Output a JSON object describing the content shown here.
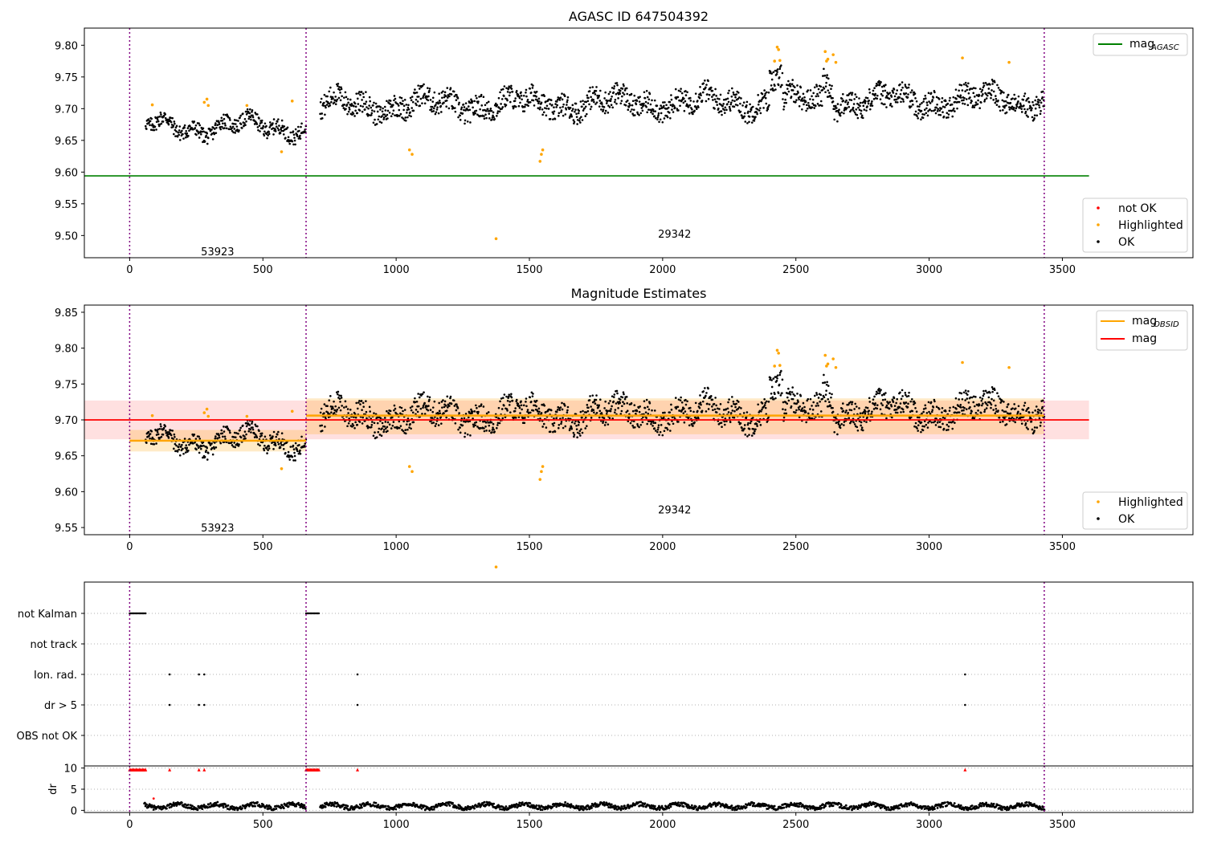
{
  "chart_data": [
    {
      "type": "scatter",
      "title": "AGASC ID 647504392",
      "xlim": [
        -170,
        3990
      ],
      "ylim": [
        9.465,
        9.827
      ],
      "xticks": [
        "0",
        "500",
        "1000",
        "1500",
        "2000",
        "2500",
        "3000",
        "3500"
      ],
      "yticks": [
        "9.50",
        "9.55",
        "9.60",
        "9.65",
        "9.70",
        "9.75",
        "9.80"
      ],
      "obs_boundaries": [
        0,
        662,
        3432
      ],
      "obs_labels": [
        {
          "text": "53923",
          "x": 330,
          "y": 9.475
        },
        {
          "text": "29342",
          "x": 2045,
          "y": 9.503
        }
      ],
      "reference_line": {
        "name": "mag_AGASC",
        "y": 9.594,
        "x": [
          -170,
          3600
        ],
        "color": "#008000"
      },
      "legend_top": {
        "label": "mag",
        "sub": "AGASC"
      },
      "legend_bottom": [
        "not OK",
        "Highlighted",
        "OK"
      ],
      "series": [
        {
          "name": "OK",
          "color": "#000000",
          "segments": [
            {
              "x0": 60,
              "x1": 662,
              "base": 9.672,
              "noise": 0.012
            },
            {
              "x0": 715,
              "x1": 3432,
              "base": 9.705,
              "noise": 0.018
            }
          ]
        },
        {
          "name": "Highlighted",
          "color": "#ffa500",
          "points": [
            [
              85,
              9.706
            ],
            [
              280,
              9.71
            ],
            [
              290,
              9.715
            ],
            [
              295,
              9.705
            ],
            [
              440,
              9.705
            ],
            [
              570,
              9.632
            ],
            [
              610,
              9.712
            ],
            [
              1050,
              9.635
            ],
            [
              1060,
              9.628
            ],
            [
              1375,
              9.495
            ],
            [
              1540,
              9.617
            ],
            [
              1545,
              9.628
            ],
            [
              1550,
              9.635
            ],
            [
              2420,
              9.775
            ],
            [
              2430,
              9.797
            ],
            [
              2435,
              9.793
            ],
            [
              2440,
              9.776
            ],
            [
              2610,
              9.79
            ],
            [
              2615,
              9.775
            ],
            [
              2620,
              9.778
            ],
            [
              2640,
              9.785
            ],
            [
              2650,
              9.773
            ],
            [
              3125,
              9.78
            ],
            [
              3300,
              9.773
            ]
          ]
        }
      ]
    },
    {
      "type": "scatter",
      "title": "Magnitude Estimates",
      "xlim": [
        -170,
        3990
      ],
      "ylim": [
        9.54,
        9.86
      ],
      "xticks": [
        "0",
        "500",
        "1000",
        "1500",
        "2000",
        "2500",
        "3000",
        "3500"
      ],
      "yticks": [
        "9.55",
        "9.60",
        "9.65",
        "9.70",
        "9.75",
        "9.80",
        "9.85"
      ],
      "obs_boundaries": [
        0,
        662,
        3432
      ],
      "obs_labels": [
        {
          "text": "53923",
          "x": 330,
          "y": 9.55
        },
        {
          "text": "29342",
          "x": 2045,
          "y": 9.575
        }
      ],
      "mag": {
        "y": 9.7,
        "band": [
          9.673,
          9.727
        ],
        "x": [
          -170,
          3600
        ],
        "color": "#ff0000"
      },
      "mag_obsid": [
        {
          "x": [
            0,
            662
          ],
          "y": 9.671,
          "band": [
            9.656,
            9.686
          ]
        },
        {
          "x": [
            662,
            3432
          ],
          "y": 9.706,
          "band": [
            9.68,
            9.73
          ]
        }
      ],
      "legend_top": [
        {
          "label": "mag",
          "sub": "OBSID"
        },
        {
          "label": "mag",
          "sub": ""
        }
      ],
      "legend_bottom": [
        "Highlighted",
        "OK"
      ]
    },
    {
      "type": "scatter",
      "xlim": [
        -170,
        3990
      ],
      "xticks": [
        "0",
        "500",
        "1000",
        "1500",
        "2000",
        "2500",
        "3000",
        "3500"
      ],
      "category_labels": [
        "not Kalman",
        "not track",
        "Ion. rad.",
        "dr > 5",
        "OBS not OK"
      ],
      "flags": {
        "not Kalman": [
          [
            0,
            60
          ],
          [
            662,
            712
          ]
        ],
        "Ion. rad.": [
          150,
          260,
          280,
          855,
          3135
        ],
        "dr > 5": [
          150,
          260,
          280,
          855,
          3135
        ]
      },
      "dr": {
        "ylabel": "dr",
        "yticks": [
          "0",
          "5",
          "10"
        ],
        "ylim": [
          -0.5,
          10.5
        ],
        "clipped_at": 10,
        "clipped_x": [
          [
            0,
            60
          ],
          [
            662,
            712
          ],
          150,
          260,
          280,
          855,
          3135
        ]
      }
    }
  ]
}
